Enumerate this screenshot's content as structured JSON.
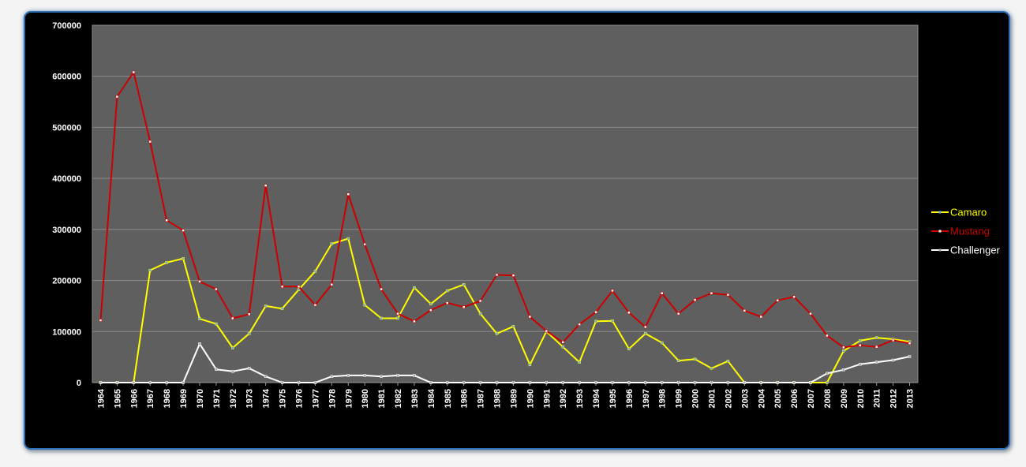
{
  "chart_data": {
    "type": "line",
    "title": "",
    "xlabel": "",
    "ylabel": "",
    "ylim": [
      0,
      700000
    ],
    "yticks": [
      "0",
      "100000",
      "200000",
      "300000",
      "400000",
      "500000",
      "600000",
      "700000"
    ],
    "grid": true,
    "legend_position": "right",
    "plot_background": "#5f5f5f",
    "background": "#000000",
    "categories": [
      "1964",
      "1965",
      "1966",
      "1967",
      "1968",
      "1969",
      "1970",
      "1971",
      "1972",
      "1973",
      "1974",
      "1975",
      "1976",
      "1977",
      "1978",
      "1979",
      "1980",
      "1981",
      "1982",
      "1983",
      "1984",
      "1985",
      "1986",
      "1987",
      "1988",
      "1989",
      "1990",
      "1991",
      "1992",
      "1993",
      "1994",
      "1995",
      "1996",
      "1997",
      "1998",
      "1999",
      "2000",
      "2001",
      "2002",
      "2003",
      "2004",
      "2005",
      "2006",
      "2007",
      "2008",
      "2009",
      "2010",
      "2011",
      "2012",
      "2013"
    ],
    "series": [
      {
        "name": "Camaro",
        "color": "#ffff00",
        "marker_color": "#6fa8dc",
        "values": [
          0,
          0,
          0,
          220000,
          235000,
          243000,
          125000,
          115000,
          68000,
          96000,
          150000,
          145000,
          182000,
          218000,
          272000,
          282000,
          152000,
          126000,
          126000,
          186000,
          154000,
          180000,
          192000,
          135000,
          96000,
          110000,
          35000,
          100000,
          70000,
          40000,
          120000,
          121000,
          66000,
          96000,
          78000,
          43000,
          46000,
          28000,
          42000,
          0,
          0,
          0,
          0,
          0,
          0,
          62000,
          82000,
          88000,
          85000,
          80000
        ]
      },
      {
        "name": "Mustang",
        "color": "#cc0000",
        "marker_color": "#ffffff",
        "values": [
          122000,
          560000,
          608000,
          472000,
          318000,
          298000,
          198000,
          183000,
          126000,
          134000,
          386000,
          188000,
          188000,
          152000,
          192000,
          369000,
          271000,
          183000,
          135000,
          120000,
          142000,
          156000,
          148000,
          160000,
          211000,
          210000,
          129000,
          101000,
          79000,
          114000,
          138000,
          180000,
          137000,
          109000,
          175000,
          135000,
          162000,
          175000,
          172000,
          141000,
          129000,
          161000,
          168000,
          135000,
          92000,
          69000,
          73000,
          70000,
          83000,
          77000
        ]
      },
      {
        "name": "Challenger",
        "color": "#ffffff",
        "marker_color": "#aaaaaa",
        "values": [
          0,
          0,
          0,
          0,
          0,
          0,
          76000,
          26000,
          22000,
          28000,
          12000,
          0,
          0,
          0,
          12000,
          14000,
          14000,
          12000,
          14000,
          14000,
          0,
          0,
          0,
          0,
          0,
          0,
          0,
          0,
          0,
          0,
          0,
          0,
          0,
          0,
          0,
          0,
          0,
          0,
          0,
          0,
          0,
          0,
          0,
          0,
          18000,
          25000,
          36000,
          40000,
          44000,
          51000
        ]
      }
    ]
  }
}
